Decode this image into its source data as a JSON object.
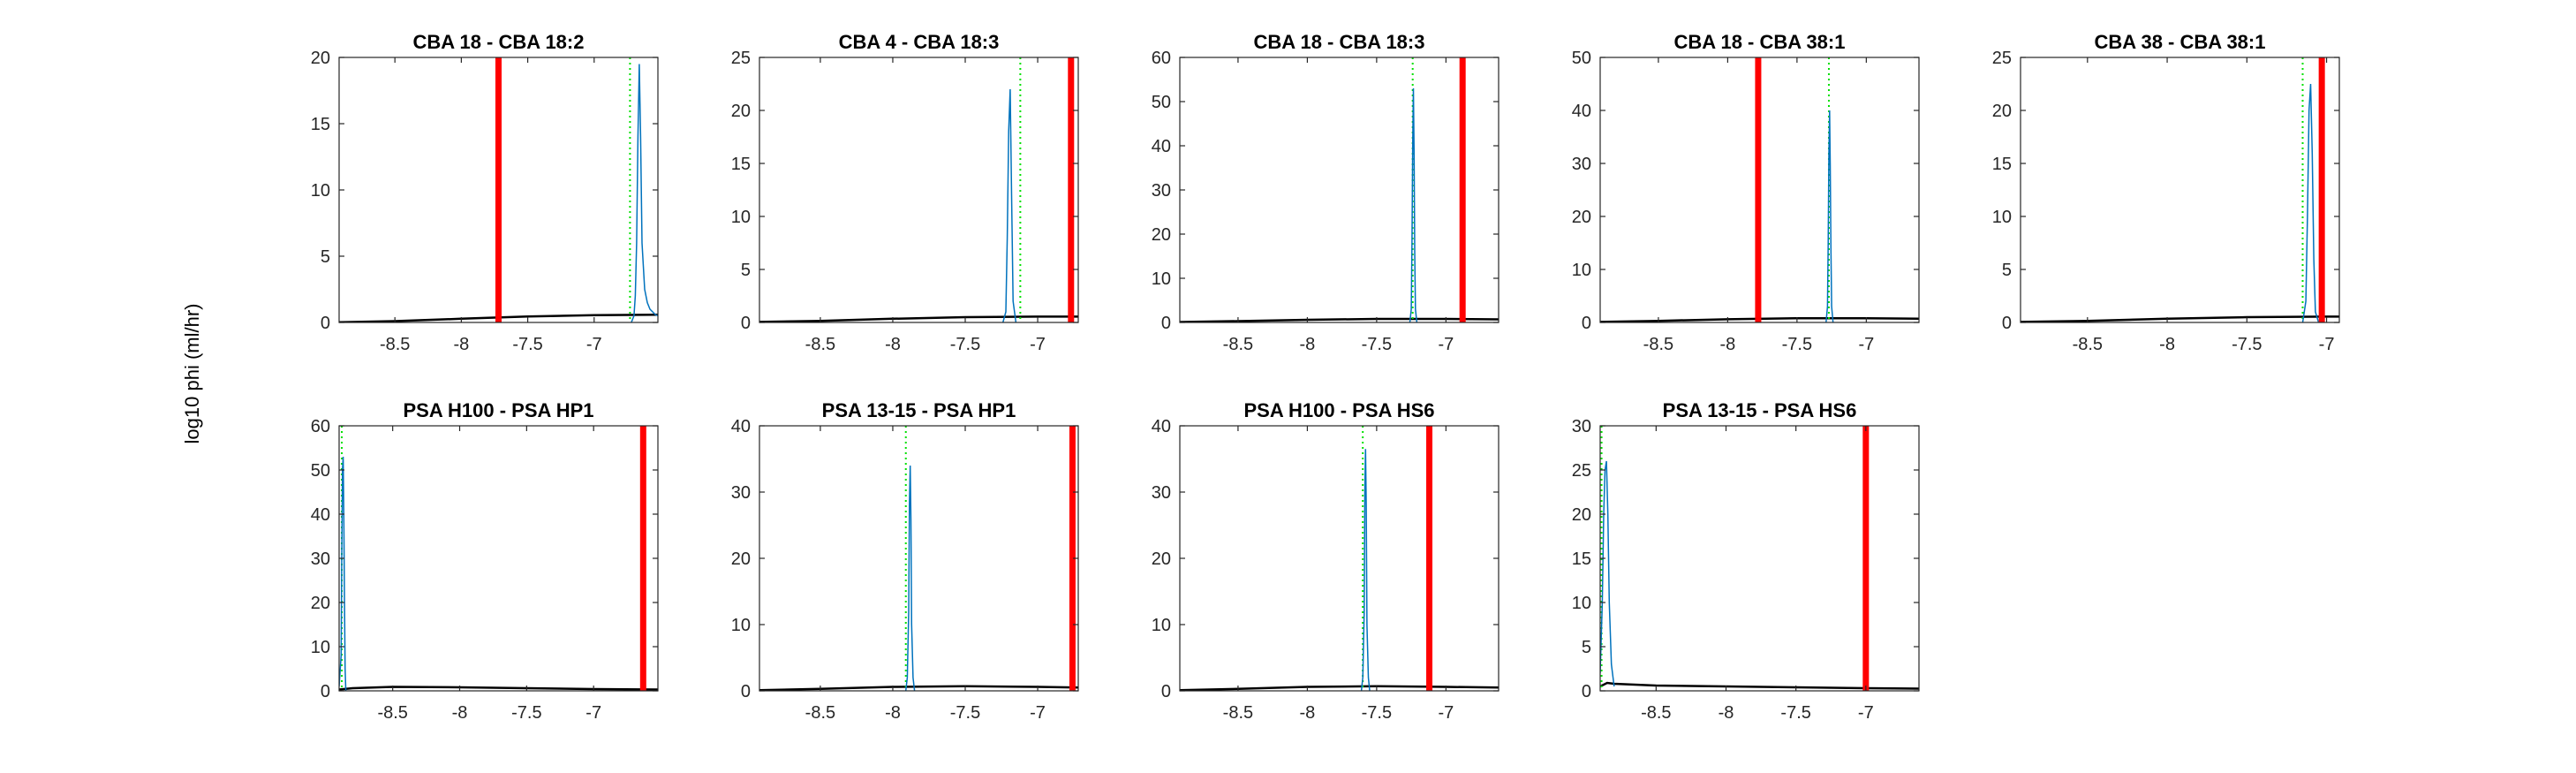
{
  "figure": {
    "ylabel": "log10 phi (ml/hr)",
    "colors": {
      "prior": "#000000",
      "posterior": "#0072BD",
      "observed": "#FF0000",
      "estimate": "#00E000"
    }
  },
  "chart_data": [
    {
      "type": "line",
      "title": "CBA 18 - CBA 18:2",
      "xlim": [
        -8.92,
        -6.52
      ],
      "ylim": [
        0,
        20
      ],
      "xticks": [
        -8.5,
        -8,
        -7.5,
        -7
      ],
      "yticks": [
        0,
        5,
        10,
        15,
        20
      ],
      "prior": {
        "x": [
          -8.92,
          -8.5,
          -8.0,
          -7.5,
          -7.0,
          -6.52
        ],
        "y": [
          0.02,
          0.1,
          0.28,
          0.45,
          0.55,
          0.58
        ]
      },
      "posterior": {
        "x": [
          -6.72,
          -6.7,
          -6.69,
          -6.68,
          -6.67,
          -6.66,
          -6.65,
          -6.64,
          -6.62,
          -6.6,
          -6.58,
          -6.56,
          -6.54,
          -6.52
        ],
        "y": [
          0,
          0.5,
          2,
          6,
          14,
          19.5,
          14,
          6,
          2.5,
          1.5,
          1.0,
          0.8,
          0.6,
          0.5
        ]
      },
      "observed_x": -7.72,
      "estimate_x": -6.73,
      "grid": false,
      "legend": "none"
    },
    {
      "type": "line",
      "title": "CBA 4 - CBA 18:3",
      "xlim": [
        -8.92,
        -6.72
      ],
      "ylim": [
        0,
        25
      ],
      "xticks": [
        -8.5,
        -8,
        -7.5,
        -7
      ],
      "yticks": [
        0,
        5,
        10,
        15,
        20,
        25
      ],
      "prior": {
        "x": [
          -8.92,
          -8.5,
          -8.0,
          -7.5,
          -7.0,
          -6.72
        ],
        "y": [
          0.05,
          0.15,
          0.35,
          0.5,
          0.55,
          0.55
        ]
      },
      "posterior": {
        "x": [
          -7.24,
          -7.22,
          -7.21,
          -7.2,
          -7.19,
          -7.18,
          -7.17,
          -7.15
        ],
        "y": [
          0,
          1,
          8,
          18,
          22,
          12,
          2,
          0
        ]
      },
      "observed_x": -6.77,
      "estimate_x": -7.12,
      "grid": false,
      "legend": "none"
    },
    {
      "type": "line",
      "title": "CBA 18 - CBA 18:3",
      "xlim": [
        -8.92,
        -6.62
      ],
      "ylim": [
        0,
        60
      ],
      "xticks": [
        -8.5,
        -8,
        -7.5,
        -7
      ],
      "yticks": [
        0,
        10,
        20,
        30,
        40,
        50,
        60
      ],
      "prior": {
        "x": [
          -8.92,
          -8.5,
          -8.0,
          -7.5,
          -7.0,
          -6.62
        ],
        "y": [
          0.1,
          0.3,
          0.6,
          0.8,
          0.8,
          0.7
        ]
      },
      "posterior": {
        "x": [
          -7.26,
          -7.25,
          -7.245,
          -7.24,
          -7.235,
          -7.23,
          -7.225,
          -7.22,
          -7.21
        ],
        "y": [
          0,
          3,
          18,
          40,
          53,
          38,
          16,
          3,
          0
        ]
      },
      "observed_x": -6.88,
      "estimate_x": -7.24,
      "grid": false,
      "legend": "none"
    },
    {
      "type": "line",
      "title": "CBA 18 - CBA 38:1",
      "xlim": [
        -8.92,
        -6.62
      ],
      "ylim": [
        0,
        50
      ],
      "xticks": [
        -8.5,
        -8,
        -7.5,
        -7
      ],
      "yticks": [
        0,
        10,
        20,
        30,
        40,
        50
      ],
      "prior": {
        "x": [
          -8.92,
          -8.5,
          -8.0,
          -7.5,
          -7.0,
          -6.62
        ],
        "y": [
          0.1,
          0.3,
          0.6,
          0.8,
          0.8,
          0.7
        ]
      },
      "posterior": {
        "x": [
          -7.29,
          -7.28,
          -7.275,
          -7.27,
          -7.265,
          -7.26,
          -7.255,
          -7.25,
          -7.24
        ],
        "y": [
          0,
          3,
          15,
          32,
          40,
          30,
          14,
          3,
          0
        ]
      },
      "observed_x": -7.78,
      "estimate_x": -7.27,
      "grid": false,
      "legend": "none"
    },
    {
      "type": "line",
      "title": "CBA 38 - CBA 38:1",
      "xlim": [
        -8.92,
        -6.92
      ],
      "ylim": [
        0,
        25
      ],
      "xticks": [
        -8.5,
        -8,
        -7.5,
        -7
      ],
      "yticks": [
        0,
        5,
        10,
        15,
        20,
        25
      ],
      "prior": {
        "x": [
          -8.92,
          -8.5,
          -8.0,
          -7.5,
          -7.0,
          -6.92
        ],
        "y": [
          0.05,
          0.15,
          0.35,
          0.5,
          0.55,
          0.55
        ]
      },
      "posterior": {
        "x": [
          -7.15,
          -7.13,
          -7.12,
          -7.11,
          -7.1,
          -7.09,
          -7.08,
          -7.07,
          -7.05
        ],
        "y": [
          0,
          2,
          10,
          20,
          22.5,
          16,
          6,
          1,
          0
        ]
      },
      "observed_x": -7.03,
      "estimate_x": -7.15,
      "grid": false,
      "legend": "none"
    },
    {
      "type": "line",
      "title": "PSA H100 - PSA HP1",
      "xlim": [
        -8.9,
        -6.52
      ],
      "ylim": [
        0,
        60
      ],
      "xticks": [
        -8.5,
        -8,
        -7.5,
        -7
      ],
      "yticks": [
        0,
        10,
        20,
        30,
        40,
        50,
        60
      ],
      "prior": {
        "x": [
          -8.9,
          -8.8,
          -8.5,
          -8.0,
          -7.5,
          -7.0,
          -6.52
        ],
        "y": [
          0.3,
          0.6,
          0.9,
          0.8,
          0.6,
          0.4,
          0.3
        ]
      },
      "posterior": {
        "x": [
          -8.9,
          -8.885,
          -8.88,
          -8.875,
          -8.87,
          -8.865,
          -8.86,
          -8.855,
          -8.85
        ],
        "y": [
          1,
          8,
          30,
          50,
          53,
          40,
          20,
          5,
          0
        ]
      },
      "observed_x": -6.63,
      "estimate_x": -8.88,
      "grid": false,
      "legend": "none"
    },
    {
      "type": "line",
      "title": "PSA 13-15 - PSA HP1",
      "xlim": [
        -8.92,
        -6.72
      ],
      "ylim": [
        0,
        40
      ],
      "xticks": [
        -8.5,
        -8,
        -7.5,
        -7
      ],
      "yticks": [
        0,
        10,
        20,
        30,
        40
      ],
      "prior": {
        "x": [
          -8.92,
          -8.5,
          -8.0,
          -7.5,
          -7.0,
          -6.72
        ],
        "y": [
          0.1,
          0.3,
          0.6,
          0.7,
          0.6,
          0.5
        ]
      },
      "posterior": {
        "x": [
          -7.91,
          -7.9,
          -7.89,
          -7.885,
          -7.88,
          -7.875,
          -7.87,
          -7.86,
          -7.85
        ],
        "y": [
          0,
          2,
          12,
          28,
          34,
          26,
          10,
          2,
          0
        ]
      },
      "observed_x": -6.76,
      "estimate_x": -7.91,
      "grid": false,
      "legend": "none"
    },
    {
      "type": "line",
      "title": "PSA H100 - PSA HS6",
      "xlim": [
        -8.92,
        -6.62
      ],
      "ylim": [
        0,
        40
      ],
      "xticks": [
        -8.5,
        -8,
        -7.5,
        -7
      ],
      "yticks": [
        0,
        10,
        20,
        30,
        40
      ],
      "prior": {
        "x": [
          -8.92,
          -8.5,
          -8.0,
          -7.5,
          -7.0,
          -6.62
        ],
        "y": [
          0.1,
          0.3,
          0.6,
          0.7,
          0.6,
          0.5
        ]
      },
      "posterior": {
        "x": [
          -7.61,
          -7.6,
          -7.59,
          -7.585,
          -7.58,
          -7.575,
          -7.57,
          -7.56,
          -7.55
        ],
        "y": [
          0,
          2,
          12,
          30,
          36.5,
          28,
          10,
          2,
          0
        ]
      },
      "observed_x": -7.12,
      "estimate_x": -7.6,
      "grid": false,
      "legend": "none"
    },
    {
      "type": "line",
      "title": "PSA 13-15 - PSA HS6",
      "xlim": [
        -8.9,
        -6.62
      ],
      "ylim": [
        0,
        30
      ],
      "xticks": [
        -8.5,
        -8,
        -7.5,
        -7
      ],
      "yticks": [
        0,
        5,
        10,
        15,
        20,
        25,
        30
      ],
      "prior": {
        "x": [
          -8.9,
          -8.85,
          -8.8,
          -8.5,
          -8.0,
          -7.5,
          -7.0,
          -6.62
        ],
        "y": [
          0.5,
          0.9,
          0.8,
          0.6,
          0.5,
          0.4,
          0.3,
          0.25
        ]
      },
      "posterior": {
        "x": [
          -8.9,
          -8.885,
          -8.875,
          -8.865,
          -8.855,
          -8.845,
          -8.835,
          -8.82,
          -8.8
        ],
        "y": [
          2,
          10,
          20,
          25,
          26,
          20,
          10,
          3,
          0.5
        ]
      },
      "observed_x": -7.0,
      "estimate_x": -8.89,
      "grid": false,
      "legend": "none"
    }
  ]
}
